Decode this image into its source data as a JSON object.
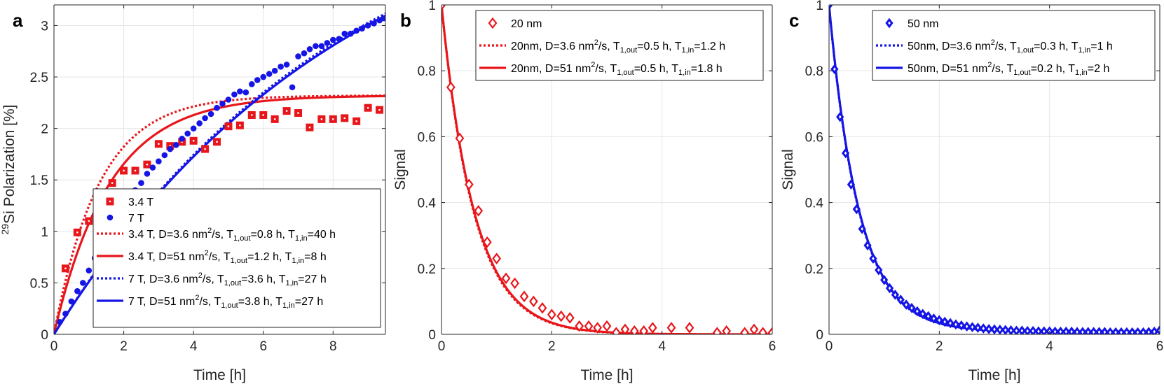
{
  "chart_data": [
    {
      "panel": "a",
      "type": "scatter",
      "xlabel": "Time [h]",
      "ylabel": "Si Polarization [%]",
      "ylabel_sup": "29",
      "xlim": [
        0,
        9.5
      ],
      "ylim": [
        0,
        3.2
      ],
      "xticks": [
        0,
        2,
        4,
        6,
        8
      ],
      "xtick_labels": [
        "0",
        "2",
        "4",
        "6",
        "8"
      ],
      "yticks": [
        0,
        0.5,
        1,
        1.5,
        2,
        2.5,
        3
      ],
      "ytick_labels": [
        "0",
        "0.5",
        "1",
        "1.5",
        "2",
        "2.5",
        "3"
      ],
      "grid": true,
      "legend_position": "lower-right",
      "series": [
        {
          "name": "3.4 T",
          "kind": "markers",
          "marker": "square",
          "color": "#e8161b",
          "x": [
            0.33,
            0.67,
            1.0,
            1.33,
            1.67,
            2.0,
            2.33,
            2.67,
            3.0,
            3.33,
            3.67,
            4.0,
            4.33,
            4.67,
            5.0,
            5.33,
            5.67,
            6.0,
            6.33,
            6.67,
            7.0,
            7.33,
            7.67,
            8.0,
            8.33,
            8.67,
            9.0,
            9.33
          ],
          "y": [
            0.64,
            0.99,
            1.1,
            1.34,
            1.47,
            1.59,
            1.59,
            1.65,
            1.85,
            1.83,
            1.87,
            1.88,
            1.8,
            1.87,
            2.02,
            2.03,
            2.13,
            2.13,
            2.09,
            2.17,
            2.15,
            2.01,
            2.09,
            2.09,
            2.1,
            2.07,
            2.2,
            2.18
          ]
        },
        {
          "name": "7 T",
          "kind": "markers",
          "marker": "circle",
          "color": "#1515e6",
          "x": [
            0.17,
            0.33,
            0.5,
            0.67,
            0.83,
            1.0,
            1.17,
            1.33,
            1.5,
            1.67,
            1.83,
            2.0,
            2.17,
            2.33,
            2.5,
            2.67,
            2.83,
            3.0,
            3.17,
            3.33,
            3.5,
            3.67,
            3.83,
            4.0,
            4.17,
            4.33,
            4.5,
            4.67,
            4.83,
            5.0,
            5.17,
            5.33,
            5.5,
            5.67,
            5.83,
            6.0,
            6.17,
            6.33,
            6.5,
            6.67,
            6.83,
            7.0,
            7.17,
            7.33,
            7.5,
            7.67,
            7.83,
            8.0,
            8.17,
            8.33,
            8.5,
            8.67,
            8.83,
            9.0,
            9.17,
            9.33,
            9.45
          ],
          "y": [
            0.12,
            0.2,
            0.32,
            0.42,
            0.5,
            0.62,
            0.74,
            0.85,
            0.95,
            1.05,
            1.15,
            1.25,
            1.33,
            1.4,
            1.47,
            1.56,
            1.62,
            1.68,
            1.74,
            1.8,
            1.84,
            1.9,
            1.95,
            2.0,
            2.05,
            2.1,
            2.14,
            2.2,
            2.24,
            2.28,
            2.33,
            2.36,
            2.35,
            2.43,
            2.47,
            2.5,
            2.53,
            2.56,
            2.6,
            2.62,
            2.4,
            2.7,
            2.73,
            2.77,
            2.8,
            2.8,
            2.83,
            2.86,
            2.87,
            2.92,
            2.92,
            2.95,
            2.97,
            3.0,
            3.02,
            3.05,
            3.07
          ]
        },
        {
          "name": "3.4 T, D=3.6 nm^2/s, T1,out=0.8 h, T1,in=40 h",
          "kind": "line",
          "dash": "dotted",
          "color": "#e8161b",
          "model": {
            "A": 2.32,
            "tau": 1.3
          }
        },
        {
          "name": "3.4 T, D=51 nm^2/s, T1,out=1.2 h, T1,in=8 h",
          "kind": "line",
          "dash": "solid",
          "color": "#e8161b",
          "model": {
            "A": 2.32,
            "tau": 1.6
          }
        },
        {
          "name": "7 T, D=3.6 nm^2/s, T1,out=3.6 h, T1,in=27 h",
          "kind": "line",
          "dash": "dotted",
          "color": "#1515e6",
          "model": {
            "A": 4.6,
            "tau": 8.4
          }
        },
        {
          "name": "7 T, D=51 nm^2/s, T1,out=3.8 h, T1,in=27 h",
          "kind": "line",
          "dash": "solid",
          "color": "#1515e6",
          "model": {
            "A": 4.6,
            "tau": 8.5
          }
        }
      ],
      "legend": [
        {
          "main": "3.4 T"
        },
        {
          "main": "7 T"
        },
        {
          "main": "3.4 T, D=3.6 nm",
          "sup": "2",
          "mid": "/s, T",
          "sub1": "1,out",
          "mid2": "=0.8 h, T",
          "sub2": "1,in",
          "end": "=40 h"
        },
        {
          "main": "3.4 T, D=51 nm",
          "sup": "2",
          "mid": "/s, T",
          "sub1": "1,out",
          "mid2": "=1.2 h, T",
          "sub2": "1,in",
          "end": "=8 h"
        },
        {
          "main": "7 T, D=3.6 nm",
          "sup": "2",
          "mid": "/s, T",
          "sub1": "1,out",
          "mid2": "=3.6 h, T",
          "sub2": "1,in",
          "end": "=27 h"
        },
        {
          "main": "7 T, D=51 nm",
          "sup": "2",
          "mid": "/s, T",
          "sub1": "1,out",
          "mid2": "=3.8 h, T",
          "sub2": "1,in",
          "end": "=27 h"
        }
      ]
    },
    {
      "panel": "b",
      "type": "scatter",
      "xlabel": "Time [h]",
      "ylabel": "Signal",
      "xlim": [
        0,
        6
      ],
      "ylim": [
        0,
        1
      ],
      "xticks": [
        0,
        2,
        4,
        6
      ],
      "xtick_labels": [
        "0",
        "2",
        "4",
        "6"
      ],
      "yticks": [
        0,
        0.2,
        0.4,
        0.6,
        0.8,
        1
      ],
      "ytick_labels": [
        "0",
        "0.2",
        "0.4",
        "0.6",
        "0.8",
        "1"
      ],
      "grid": true,
      "legend_position": "top-right",
      "series": [
        {
          "name": "20 nm",
          "kind": "markers",
          "marker": "diamond-open",
          "color": "#e8161b",
          "x": [
            0.0,
            0.17,
            0.33,
            0.5,
            0.67,
            0.83,
            1.0,
            1.17,
            1.33,
            1.5,
            1.67,
            1.83,
            2.0,
            2.17,
            2.33,
            2.5,
            2.67,
            2.83,
            3.0,
            3.17,
            3.33,
            3.5,
            3.67,
            3.83,
            4.17,
            4.5,
            5.0,
            5.17,
            5.5,
            5.67,
            5.83,
            6.0
          ],
          "y": [
            1.0,
            0.75,
            0.595,
            0.455,
            0.375,
            0.28,
            0.23,
            0.17,
            0.155,
            0.115,
            0.1,
            0.08,
            0.06,
            0.055,
            0.05,
            0.025,
            0.025,
            0.02,
            0.025,
            0.005,
            0.015,
            0.01,
            0.01,
            0.02,
            0.02,
            0.02,
            0.005,
            0.01,
            0.005,
            0.015,
            0.005,
            0.005
          ]
        },
        {
          "name": "20nm, D=3.6 nm^2/s, T1,out=0.5 h, T1,in=1.2 h",
          "kind": "line",
          "dash": "dotted",
          "color": "#e8161b",
          "model": {
            "tau": 0.59
          }
        },
        {
          "name": "20nm, D=51 nm^2/s, T1,out=0.5 h, T1,in=1.8 h",
          "kind": "line",
          "dash": "solid",
          "color": "#e8161b",
          "model": {
            "tau": 0.6
          }
        }
      ],
      "legend": [
        {
          "main": "20 nm"
        },
        {
          "main": "20nm, D=3.6 nm",
          "sup": "2",
          "mid": "/s, T",
          "sub1": "1,out",
          "mid2": "=0.5 h, T",
          "sub2": "1,in",
          "end": "=1.2 h"
        },
        {
          "main": "20nm, D=51 nm",
          "sup": "2",
          "mid": "/s, T",
          "sub1": "1,out",
          "mid2": "=0.5 h, T",
          "sub2": "1,in",
          "end": "=1.8 h"
        }
      ]
    },
    {
      "panel": "c",
      "type": "scatter",
      "xlabel": "Time [h]",
      "ylabel": "Signal",
      "xlim": [
        0,
        6
      ],
      "ylim": [
        0,
        1
      ],
      "xticks": [
        0,
        2,
        4,
        6
      ],
      "xtick_labels": [
        "0",
        "2",
        "4",
        "6"
      ],
      "yticks": [
        0,
        0.2,
        0.4,
        0.6,
        0.8,
        1
      ],
      "ytick_labels": [
        "0",
        "0.2",
        "0.4",
        "0.6",
        "0.8",
        "1"
      ],
      "grid": true,
      "legend_position": "top-right",
      "series": [
        {
          "name": "50 nm",
          "kind": "markers",
          "marker": "diamond-filled",
          "color": "#1515e6",
          "x": [
            0.0,
            0.1,
            0.2,
            0.3,
            0.4,
            0.5,
            0.6,
            0.7,
            0.8,
            0.9,
            1.0,
            1.1,
            1.2,
            1.3,
            1.4,
            1.5,
            1.6,
            1.7,
            1.8,
            1.9,
            2.0,
            2.1,
            2.2,
            2.3,
            2.4,
            2.5,
            2.6,
            2.7,
            2.8,
            2.9,
            3.0,
            3.1,
            3.2,
            3.3,
            3.4,
            3.5,
            3.6,
            3.7,
            3.8,
            3.9,
            4.0,
            4.1,
            4.2,
            4.3,
            4.4,
            4.5,
            4.6,
            4.7,
            4.8,
            4.9,
            5.0,
            5.1,
            5.2,
            5.3,
            5.4,
            5.5,
            5.6,
            5.7,
            5.8,
            5.9,
            6.0
          ],
          "y": [
            1.0,
            0.805,
            0.66,
            0.55,
            0.455,
            0.38,
            0.32,
            0.27,
            0.23,
            0.195,
            0.165,
            0.14,
            0.12,
            0.105,
            0.09,
            0.08,
            0.07,
            0.062,
            0.055,
            0.048,
            0.043,
            0.038,
            0.034,
            0.03,
            0.027,
            0.024,
            0.022,
            0.02,
            0.018,
            0.016,
            0.015,
            0.014,
            0.013,
            0.012,
            0.011,
            0.011,
            0.01,
            0.01,
            0.009,
            0.009,
            0.009,
            0.008,
            0.008,
            0.008,
            0.008,
            0.007,
            0.007,
            0.007,
            0.007,
            0.007,
            0.007,
            0.006,
            0.006,
            0.006,
            0.006,
            0.006,
            0.006,
            0.006,
            0.007,
            0.008,
            0.012
          ]
        },
        {
          "name": "50nm, D=3.6 nm^2/s, T1,out=0.3 h, T1,in=1 h",
          "kind": "line",
          "dash": "dotted",
          "color": "#1515e6",
          "model": {
            "tau": 0.545,
            "c": 0.008
          }
        },
        {
          "name": "50nm, D=51 nm^2/s, T1,out=0.2 h, T1,in=2 h",
          "kind": "line",
          "dash": "solid",
          "color": "#1515e6",
          "model": {
            "tau": 0.55,
            "c": 0.008
          }
        }
      ],
      "legend": [
        {
          "main": "50 nm"
        },
        {
          "main": "50nm, D=3.6 nm",
          "sup": "2",
          "mid": "/s, T",
          "sub1": "1,out",
          "mid2": "=0.3 h, T",
          "sub2": "1,in",
          "end": "=1 h"
        },
        {
          "main": "50nm, D=51 nm",
          "sup": "2",
          "mid": "/s, T",
          "sub1": "1,out",
          "mid2": "=0.2 h, T",
          "sub2": "1,in",
          "end": "=2 h"
        }
      ]
    }
  ]
}
